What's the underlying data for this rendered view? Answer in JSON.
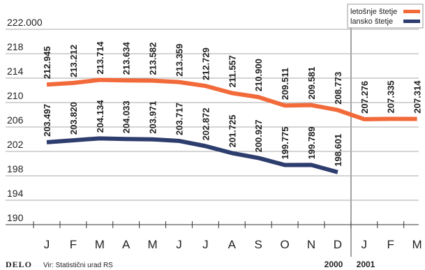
{
  "chart_data": {
    "type": "line",
    "categories": [
      "J",
      "F",
      "M",
      "A",
      "M",
      "J",
      "J",
      "A",
      "S",
      "O",
      "N",
      "D",
      "J",
      "F",
      "M"
    ],
    "ylim": [
      190,
      222
    ],
    "yticks": [
      190,
      194,
      198,
      202,
      206,
      210,
      214,
      218,
      {
        "value": 222,
        "label": "222.000"
      }
    ],
    "grid": true,
    "legend": "top-right",
    "series": [
      {
        "name": "letošnje štetje",
        "color": "#f26a3a",
        "values": [
          212.945,
          213.212,
          213.714,
          213.634,
          213.582,
          213.359,
          212.729,
          211.557,
          210.9,
          209.511,
          209.581,
          208.773,
          207.276,
          207.335,
          207.314
        ],
        "value_labels": [
          "212.945",
          "213.212",
          "213.714",
          "213.634",
          "213.582",
          "213.359",
          "212.729",
          "211.557",
          "210.900",
          "209.511",
          "209.581",
          "208.773",
          "207.276",
          "207.335",
          "207.314"
        ]
      },
      {
        "name": "lansko štetje",
        "color": "#2c3d6e",
        "values": [
          203.497,
          203.82,
          204.134,
          204.033,
          203.971,
          203.717,
          202.872,
          201.725,
          200.927,
          199.775,
          199.789,
          198.601,
          null,
          null,
          null
        ],
        "value_labels": [
          "203.497",
          "203.820",
          "204.134",
          "204.033",
          "203.971",
          "203.717",
          "202.872",
          "201.725",
          "200.927",
          "199.775",
          "199.789",
          "198.601",
          null,
          null,
          null
        ]
      }
    ],
    "years": [
      "2000",
      "2001"
    ],
    "logo": "DELO",
    "source": "Vir: Statistični urad RS"
  }
}
